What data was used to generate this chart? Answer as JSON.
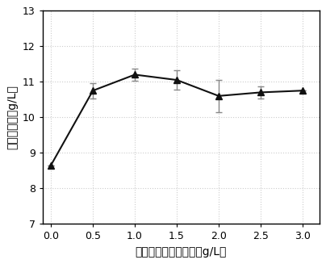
{
  "x": [
    0.0,
    0.5,
    1.0,
    1.5,
    2.0,
    2.5,
    3.0
  ],
  "y": [
    8.65,
    10.75,
    11.2,
    11.05,
    10.6,
    10.7,
    10.75
  ],
  "yerr": [
    0.0,
    0.22,
    0.18,
    0.28,
    0.45,
    0.18,
    0.0
  ],
  "xlabel": "刺五加诱导物添加量（g/L）",
  "ylabel": "菌丝体干重（g/L）",
  "ylim": [
    7,
    13
  ],
  "xlim": [
    -0.1,
    3.2
  ],
  "yticks": [
    7,
    8,
    9,
    10,
    11,
    12,
    13
  ],
  "xticks": [
    0.0,
    0.5,
    1.0,
    1.5,
    2.0,
    2.5,
    3.0
  ],
  "line_color": "#111111",
  "marker_color": "#111111",
  "grid_color": "#cccccc",
  "background_color": "#ffffff",
  "ecolor": "#888888"
}
